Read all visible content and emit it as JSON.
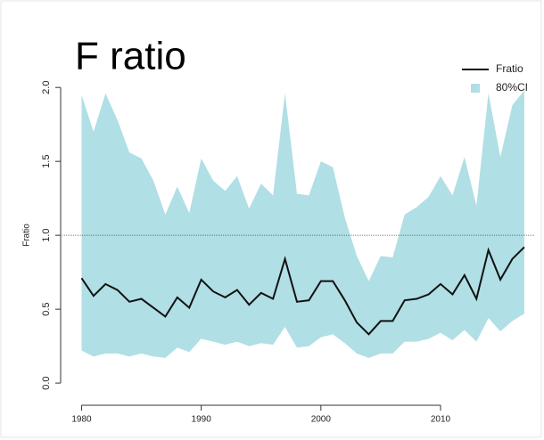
{
  "chart_data": {
    "type": "line",
    "title": "F ratio",
    "y_label": "Fratio",
    "x": [
      1980,
      1981,
      1982,
      1983,
      1984,
      1985,
      1986,
      1987,
      1988,
      1989,
      1990,
      1991,
      1992,
      1993,
      1994,
      1995,
      1996,
      1997,
      1998,
      1999,
      2000,
      2001,
      2002,
      2003,
      2004,
      2005,
      2006,
      2007,
      2008,
      2009,
      2010,
      2011,
      2012,
      2013,
      2014,
      2015,
      2016,
      2017
    ],
    "series": [
      {
        "name": "80%CI",
        "type": "band",
        "color": "#b0dfe5",
        "upper": [
          1.95,
          1.7,
          1.96,
          1.78,
          1.56,
          1.52,
          1.37,
          1.14,
          1.33,
          1.15,
          1.52,
          1.37,
          1.3,
          1.4,
          1.18,
          1.35,
          1.27,
          1.96,
          1.28,
          1.27,
          1.5,
          1.46,
          1.12,
          0.86,
          0.69,
          0.86,
          0.85,
          1.14,
          1.19,
          1.26,
          1.4,
          1.27,
          1.53,
          1.2,
          1.96,
          1.53,
          1.88,
          1.98
        ],
        "lower": [
          0.22,
          0.18,
          0.2,
          0.2,
          0.18,
          0.2,
          0.18,
          0.17,
          0.24,
          0.21,
          0.3,
          0.28,
          0.26,
          0.28,
          0.25,
          0.27,
          0.26,
          0.38,
          0.24,
          0.25,
          0.31,
          0.33,
          0.27,
          0.2,
          0.17,
          0.2,
          0.2,
          0.28,
          0.28,
          0.3,
          0.34,
          0.29,
          0.36,
          0.28,
          0.44,
          0.35,
          0.42,
          0.47
        ]
      },
      {
        "name": "Fratio",
        "type": "line",
        "color": "#111111",
        "values": [
          0.71,
          0.59,
          0.67,
          0.63,
          0.55,
          0.57,
          0.51,
          0.45,
          0.58,
          0.51,
          0.7,
          0.62,
          0.58,
          0.63,
          0.53,
          0.61,
          0.57,
          0.84,
          0.55,
          0.56,
          0.69,
          0.69,
          0.56,
          0.41,
          0.33,
          0.42,
          0.42,
          0.56,
          0.57,
          0.6,
          0.67,
          0.6,
          0.73,
          0.57,
          0.9,
          0.7,
          0.84,
          0.92
        ]
      }
    ],
    "hline": 1,
    "xlim": [
      1978.4,
      2017.9
    ],
    "ylim": [
      -0.15,
      2.2
    ],
    "xticks": [
      1980,
      1990,
      2000,
      2010
    ],
    "yticks": [
      {
        "value": 0,
        "label": "0.0"
      },
      0.5,
      {
        "value": 1,
        "label": "1.0"
      },
      1.5,
      {
        "value": 2,
        "label": "2.0"
      }
    ],
    "legend": "top-right"
  }
}
